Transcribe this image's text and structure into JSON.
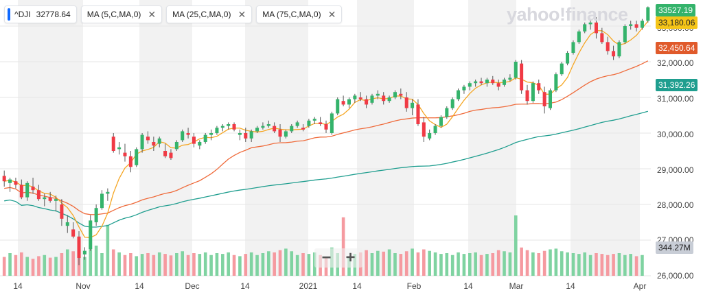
{
  "legend": {
    "symbol": "^DJI",
    "value": "32778.64",
    "indicators": [
      "MA (5,C,MA,0)",
      "MA (25,C,MA,0)",
      "MA (75,C,MA,0)"
    ],
    "close_icon": "close-icon"
  },
  "brand": "yahoo!finance",
  "zoom": {
    "minus": "−",
    "plus": "+"
  },
  "badges": {
    "last": "33527.19",
    "ma5": "33,180.06",
    "ma25": "32,450.64",
    "ma75": "31,392.26",
    "volume": "344.27M"
  },
  "colors": {
    "up": "#34b36b",
    "down": "#f03a45",
    "ma5": "#f5a623",
    "ma25": "#ef6a3a",
    "ma75": "#1f9e8f",
    "vol_up": "#7fd3a1",
    "vol_down": "#f59aa0",
    "band": "#f2f2f2"
  },
  "chart_data": {
    "type": "candlestick",
    "y_ticks": [
      "33,000.00",
      "32,000.00",
      "31,000.00",
      "30,000.00",
      "29,000.00",
      "28,000.00",
      "27,000.00",
      "26,000.00"
    ],
    "x_labels": [
      "14",
      "Nov",
      "14",
      "Dec",
      "14",
      "2021",
      "14",
      "Feb",
      "14",
      "Mar",
      "14",
      "Apr"
    ],
    "ylim": [
      26000,
      33500
    ],
    "grid": true,
    "candles_ohlc": [
      [
        28800,
        28950,
        28500,
        28650
      ],
      [
        28600,
        28750,
        28350,
        28700
      ],
      [
        28650,
        28750,
        28450,
        28550
      ],
      [
        28550,
        28700,
        28150,
        28200
      ],
      [
        28200,
        28650,
        28100,
        28600
      ],
      [
        28500,
        28750,
        28300,
        28400
      ],
      [
        28400,
        28550,
        28100,
        28150
      ],
      [
        28150,
        28300,
        27950,
        28200
      ],
      [
        28200,
        28350,
        28050,
        28100
      ],
      [
        28100,
        28250,
        27800,
        28150
      ],
      [
        28000,
        28150,
        27400,
        27600
      ],
      [
        27400,
        27700,
        27200,
        27500
      ],
      [
        27300,
        27500,
        27050,
        27100
      ],
      [
        27100,
        27250,
        26300,
        26500
      ],
      [
        26600,
        26800,
        26450,
        26700
      ],
      [
        26750,
        27700,
        26700,
        27550
      ],
      [
        27500,
        28000,
        27400,
        27900
      ],
      [
        27900,
        28400,
        27850,
        28300
      ],
      [
        28300,
        28450,
        28100,
        28350
      ],
      [
        29900,
        30000,
        29450,
        29500
      ],
      [
        29550,
        29750,
        29400,
        29600
      ],
      [
        29450,
        29700,
        29200,
        29350
      ],
      [
        29350,
        29500,
        28900,
        29050
      ],
      [
        29100,
        29600,
        29050,
        29550
      ],
      [
        29550,
        30000,
        29450,
        29950
      ],
      [
        29900,
        30050,
        29700,
        29800
      ],
      [
        29750,
        29900,
        29500,
        29650
      ],
      [
        29700,
        29900,
        29600,
        29850
      ],
      [
        29500,
        29700,
        29300,
        29350
      ],
      [
        29450,
        29550,
        29250,
        29300
      ],
      [
        29550,
        29800,
        29500,
        29750
      ],
      [
        29800,
        30100,
        29750,
        30050
      ],
      [
        30000,
        30150,
        29850,
        29950
      ],
      [
        29900,
        30000,
        29600,
        29700
      ],
      [
        29650,
        29800,
        29550,
        29750
      ],
      [
        29750,
        30000,
        29700,
        29950
      ],
      [
        29950,
        30100,
        29800,
        30000
      ],
      [
        30000,
        30200,
        29950,
        30150
      ],
      [
        30150,
        30250,
        30050,
        30200
      ],
      [
        30200,
        30300,
        30100,
        30250
      ],
      [
        30250,
        30300,
        30050,
        30100
      ],
      [
        29950,
        30100,
        29800,
        30000
      ],
      [
        30000,
        30150,
        29750,
        29850
      ],
      [
        29850,
        30100,
        29750,
        30050
      ],
      [
        30050,
        30200,
        30000,
        30150
      ],
      [
        30150,
        30300,
        30100,
        30200
      ],
      [
        30200,
        30350,
        30150,
        30250
      ],
      [
        30200,
        30300,
        30000,
        30050
      ],
      [
        30100,
        30250,
        29750,
        29900
      ],
      [
        29900,
        30100,
        29850,
        30050
      ],
      [
        30050,
        30250,
        30000,
        30200
      ],
      [
        30200,
        30350,
        30150,
        30300
      ],
      [
        30150,
        30250,
        30050,
        30100
      ],
      [
        30200,
        30400,
        30150,
        30350
      ],
      [
        30350,
        30450,
        30250,
        30400
      ],
      [
        30300,
        30450,
        30200,
        30250
      ],
      [
        30250,
        30350,
        30000,
        30100
      ],
      [
        30000,
        30600,
        29950,
        30550
      ],
      [
        30550,
        31000,
        30500,
        30950
      ],
      [
        30900,
        31050,
        30750,
        30800
      ],
      [
        30800,
        31000,
        30700,
        30950
      ],
      [
        30950,
        31100,
        30850,
        31050
      ],
      [
        31000,
        31150,
        30900,
        30950
      ],
      [
        30950,
        31050,
        30700,
        30800
      ],
      [
        30850,
        31100,
        30800,
        31050
      ],
      [
        31050,
        31200,
        30950,
        31100
      ],
      [
        31050,
        31150,
        30800,
        30900
      ],
      [
        30900,
        31050,
        30850,
        31000
      ],
      [
        31000,
        31200,
        30950,
        31150
      ],
      [
        31100,
        31250,
        30950,
        31050
      ],
      [
        31000,
        31150,
        30600,
        30700
      ],
      [
        30700,
        30950,
        30500,
        30850
      ],
      [
        30800,
        30950,
        30200,
        30250
      ],
      [
        30300,
        30450,
        29750,
        29900
      ],
      [
        29850,
        30100,
        29800,
        30000
      ],
      [
        30000,
        30250,
        29950,
        30200
      ],
      [
        30200,
        30500,
        30150,
        30450
      ],
      [
        30450,
        30750,
        30400,
        30700
      ],
      [
        30700,
        31000,
        30650,
        30950
      ],
      [
        30950,
        31250,
        30900,
        31200
      ],
      [
        31200,
        31350,
        31100,
        31300
      ],
      [
        31300,
        31450,
        31200,
        31400
      ],
      [
        31400,
        31500,
        31300,
        31450
      ],
      [
        31450,
        31550,
        31350,
        31400
      ],
      [
        31400,
        31550,
        31300,
        31500
      ],
      [
        31500,
        31600,
        31350,
        31400
      ],
      [
        31400,
        31500,
        31200,
        31300
      ],
      [
        31350,
        31550,
        31300,
        31500
      ],
      [
        31500,
        31650,
        31450,
        31550
      ],
      [
        31550,
        32050,
        31500,
        32000
      ],
      [
        31950,
        32050,
        31100,
        31200
      ],
      [
        31200,
        31350,
        30800,
        30900
      ],
      [
        30900,
        31450,
        30850,
        31400
      ],
      [
        31400,
        31500,
        31100,
        31200
      ],
      [
        31150,
        31300,
        30550,
        30750
      ],
      [
        30700,
        31250,
        30650,
        31200
      ],
      [
        31200,
        31700,
        31150,
        31650
      ],
      [
        31650,
        32000,
        31600,
        31950
      ],
      [
        31950,
        32300,
        31900,
        32250
      ],
      [
        32250,
        32600,
        32200,
        32550
      ],
      [
        32550,
        32900,
        32500,
        32850
      ],
      [
        32850,
        33100,
        32800,
        33050
      ],
      [
        33050,
        33200,
        32900,
        33100
      ],
      [
        33100,
        33250,
        32650,
        32800
      ],
      [
        32800,
        32950,
        32500,
        32550
      ],
      [
        32550,
        32700,
        32200,
        32300
      ],
      [
        32300,
        32450,
        32050,
        32150
      ],
      [
        32150,
        32600,
        32100,
        32550
      ],
      [
        32550,
        33050,
        32500,
        33000
      ],
      [
        33000,
        33150,
        32900,
        33050
      ],
      [
        33050,
        33150,
        32850,
        32950
      ],
      [
        32950,
        33200,
        32900,
        33150
      ],
      [
        33150,
        33550,
        33100,
        33527
      ]
    ],
    "volume_rel": [
      0.5,
      0.6,
      0.55,
      0.62,
      0.5,
      0.45,
      0.52,
      0.55,
      0.48,
      0.5,
      0.6,
      0.7,
      0.65,
      0.78,
      0.5,
      0.72,
      0.8,
      0.6,
      1.0,
      0.7,
      0.62,
      0.55,
      0.6,
      0.52,
      0.58,
      0.6,
      0.55,
      0.62,
      0.58,
      0.54,
      0.6,
      0.65,
      0.55,
      0.6,
      0.58,
      0.62,
      0.55,
      0.6,
      0.58,
      0.62,
      0.55,
      0.52,
      0.58,
      0.62,
      0.55,
      0.6,
      0.65,
      0.62,
      0.68,
      0.72,
      0.65,
      0.55,
      0.6,
      0.58,
      0.62,
      0.55,
      0.5,
      0.75,
      0.6,
      0.55,
      0.5,
      0.58,
      0.62,
      0.68,
      0.6,
      0.66,
      0.64,
      0.7,
      0.6,
      0.58,
      0.65,
      0.72,
      0.62,
      0.7,
      0.66,
      0.62,
      0.58,
      0.6,
      0.55,
      0.62,
      0.58,
      0.6,
      0.62,
      0.55,
      0.58,
      0.6,
      0.68,
      0.65,
      0.62,
      0.72,
      0.75,
      0.68,
      0.62,
      0.6,
      0.66,
      0.7,
      0.72,
      0.65,
      0.62,
      0.6,
      0.58,
      0.62,
      0.55,
      0.6,
      0.58,
      0.55,
      0.58,
      0.6,
      0.55,
      0.58,
      0.52,
      0.55
    ],
    "volume_spikes": {
      "18": 1.35,
      "59": 1.55,
      "89": 1.6
    }
  }
}
